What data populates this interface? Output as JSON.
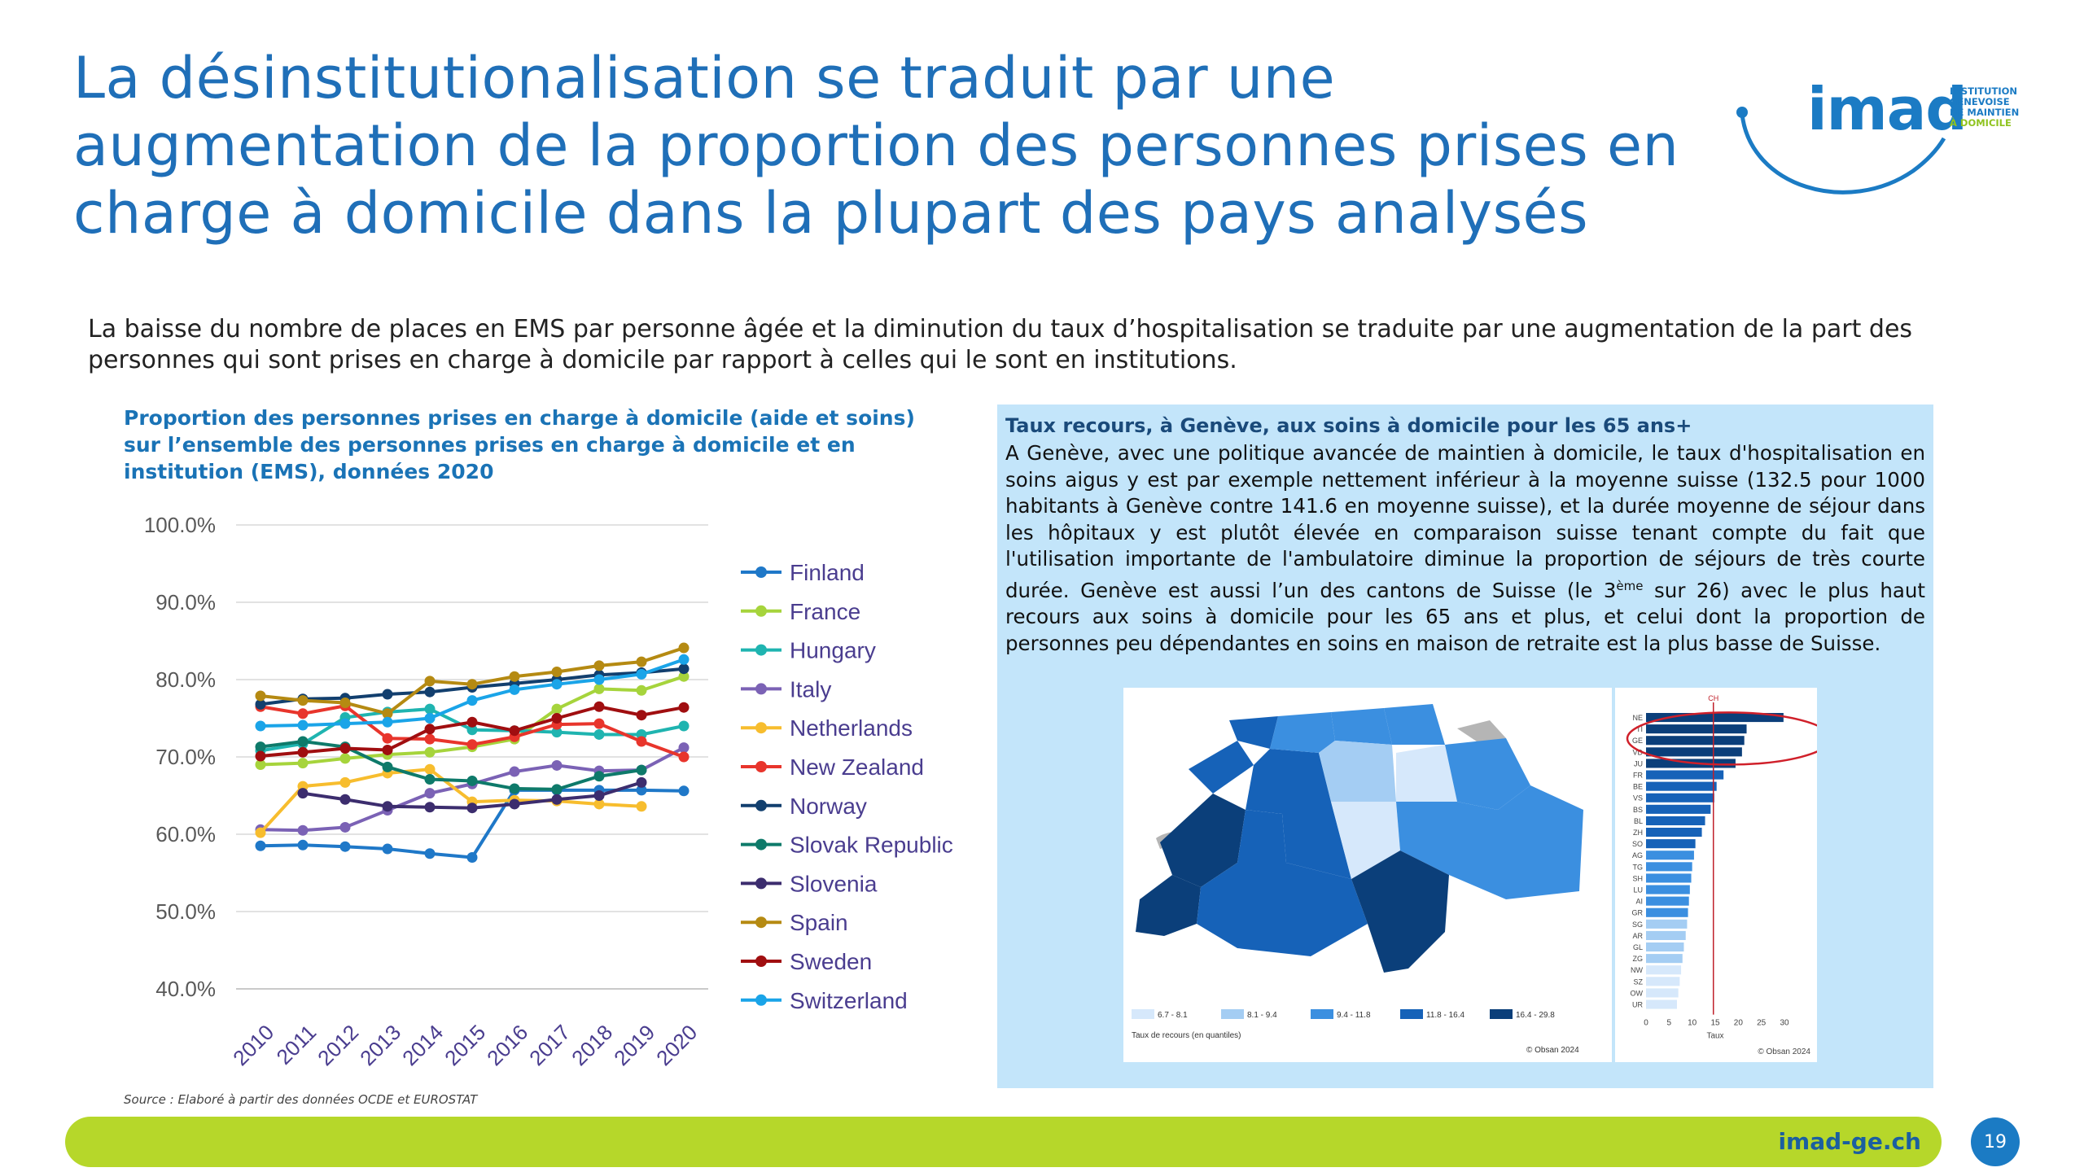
{
  "slide": {
    "title": "La désinstitutionalisation se traduit par une augmentation de la proportion des personnes prises en charge à domicile dans la plupart des pays analysés",
    "intro": "La baisse du nombre de places en EMS par personne âgée et la diminution du taux d’hospitalisation se traduite par une augmentation de la part des personnes qui sont prises en charge à domicile par rapport à celles qui le sont en institutions.",
    "page_number": "19",
    "footer_url": "imad-ge.ch",
    "source": "Source : Elaboré à partir des données OCDE et EUROSTAT"
  },
  "logo": {
    "wordmark": "imad",
    "line1": "INSTITUTION",
    "line2": "GENEVOISE",
    "line3": "DE MAINTIEN",
    "line4": "À DOMICILE"
  },
  "left_chart_title": "Proportion des personnes prises en charge à domicile (aide et soins) sur l’ensemble des personnes prises en charge à domicile et en institution (EMS), données 2020",
  "panel": {
    "title": "Taux recours, à Genève, aux soins à domicile pour les 65 ans+",
    "text_part1": "A Genève, avec une politique avancée de maintien à domicile, le taux d'hospitalisation en soins aigus y est par exemple nettement inférieur à la moyenne suisse (132.5 pour 1000 habitants à Genève contre 141.6 en moyenne suisse), et la durée moyenne de séjour dans les hôpitaux y est plutôt élevée en comparaison suisse tenant compte du fait que l'utilisation importante de l'ambulatoire diminue la proportion de séjours de très courte durée. Genève est aussi l’un des cantons de Suisse (le 3",
    "text_sup": "ème",
    "text_part2": " sur 26) avec le plus haut recours aux soins à domicile pour les 65 ans et plus, et celui dont la proportion de personnes peu dépendantes en soins en maison de retraite est la plus basse de Suisse."
  },
  "colors": {
    "title_blue": "#1f6fb8",
    "panel_bg": "#c3e5fa",
    "footer_green": "#b6d72a",
    "map_shades": [
      "#d6e8fb",
      "#a4cdf3",
      "#3b8fe0",
      "#1662b8",
      "#0b3f7a"
    ]
  },
  "chart_data": [
    {
      "type": "line",
      "x": [
        "2010",
        "2011",
        "2012",
        "2013",
        "2014",
        "2015",
        "2016",
        "2017",
        "2018",
        "2019",
        "2020"
      ],
      "ylim": [
        40,
        100
      ],
      "yticks": [
        "100.0%",
        "90.0%",
        "80.0%",
        "70.0%",
        "60.0%",
        "50.0%",
        "40.0%"
      ],
      "grid": true,
      "legend": "right",
      "series": [
        {
          "name": "Finland",
          "color": "#1f78c8",
          "values": [
            58.5,
            58.6,
            58.4,
            58.1,
            57.5,
            57.0,
            65.7,
            65.7,
            65.7,
            65.7,
            65.6
          ]
        },
        {
          "name": "France",
          "color": "#a6d43c",
          "values": [
            69.0,
            69.2,
            69.8,
            70.3,
            70.6,
            71.3,
            72.3,
            76.2,
            78.8,
            78.6,
            80.4
          ]
        },
        {
          "name": "Hungary",
          "color": "#1fb4b0",
          "values": [
            70.8,
            71.7,
            75.1,
            75.8,
            76.2,
            73.5,
            73.4,
            73.2,
            72.9,
            72.9,
            74.0
          ]
        },
        {
          "name": "Italy",
          "color": "#7b62b5",
          "values": [
            60.6,
            60.5,
            60.9,
            63.1,
            65.3,
            66.5,
            68.1,
            68.9,
            68.2,
            68.3,
            71.2
          ]
        },
        {
          "name": "Netherlands",
          "color": "#f7bd2e",
          "values": [
            60.2,
            66.2,
            66.7,
            67.9,
            68.4,
            64.2,
            64.4,
            64.3,
            63.9,
            63.6,
            null
          ]
        },
        {
          "name": "New Zealand",
          "color": "#e8352c",
          "values": [
            76.5,
            75.6,
            76.6,
            72.4,
            72.3,
            71.6,
            72.6,
            74.2,
            74.3,
            72.0,
            70.0
          ]
        },
        {
          "name": "Norway",
          "color": "#123f6e",
          "values": [
            76.8,
            77.5,
            77.6,
            78.1,
            78.4,
            79.0,
            79.5,
            80.0,
            80.6,
            80.9,
            81.4
          ]
        },
        {
          "name": "Slovak Republic",
          "color": "#0e7a6a",
          "values": [
            71.3,
            72.0,
            71.3,
            68.7,
            67.1,
            66.9,
            65.9,
            65.8,
            67.5,
            68.3,
            null
          ]
        },
        {
          "name": "Slovenia",
          "color": "#3c2d6e",
          "values": [
            null,
            65.3,
            64.5,
            63.6,
            63.5,
            63.4,
            63.9,
            64.5,
            65.0,
            66.7,
            null
          ]
        },
        {
          "name": "Spain",
          "color": "#b58a12",
          "values": [
            77.9,
            77.3,
            77.0,
            75.6,
            79.8,
            79.4,
            80.4,
            81.0,
            81.8,
            82.3,
            84.1
          ]
        },
        {
          "name": "Sweden",
          "color": "#a00e10",
          "values": [
            70.1,
            70.6,
            71.1,
            70.9,
            73.6,
            74.5,
            73.4,
            75.0,
            76.5,
            75.4,
            76.4
          ]
        },
        {
          "name": "Switzerland",
          "color": "#1aa4e8",
          "values": [
            74.0,
            74.1,
            74.3,
            74.5,
            75.0,
            77.3,
            78.7,
            79.4,
            80.0,
            80.7,
            82.6
          ]
        }
      ]
    },
    {
      "type": "bar",
      "orientation": "horizontal",
      "categories": [
        "NE",
        "TI",
        "GE",
        "VD",
        "JU",
        "FR",
        "BE",
        "VS",
        "BS",
        "BL",
        "ZH",
        "SO",
        "AG",
        "TG",
        "SH",
        "LU",
        "AI",
        "GR",
        "SG",
        "AR",
        "GL",
        "ZG",
        "NW",
        "SZ",
        "OW",
        "UR"
      ],
      "values": [
        29.8,
        21.8,
        21.3,
        20.8,
        19.4,
        16.8,
        15.3,
        14.8,
        14.0,
        12.8,
        12.1,
        10.7,
        10.4,
        10.0,
        9.8,
        9.5,
        9.3,
        9.1,
        8.9,
        8.6,
        8.2,
        7.9,
        7.6,
        7.3,
        7.0,
        6.7
      ],
      "reference_label": "CH",
      "reference_value": 14.6,
      "xticks": [
        "0",
        "5",
        "10",
        "15",
        "20",
        "25",
        "30"
      ],
      "xlabel": "Taux",
      "credit": "© Obsan 2024"
    },
    {
      "type": "map",
      "legend_title": "Taux de recours (en quantiles)",
      "legend": [
        "6.7 - 8.1",
        "8.1 - 9.4",
        "9.4 - 11.8",
        "11.8 - 16.4",
        "16.4 - 29.8"
      ],
      "credit": "© Obsan 2024"
    }
  ]
}
